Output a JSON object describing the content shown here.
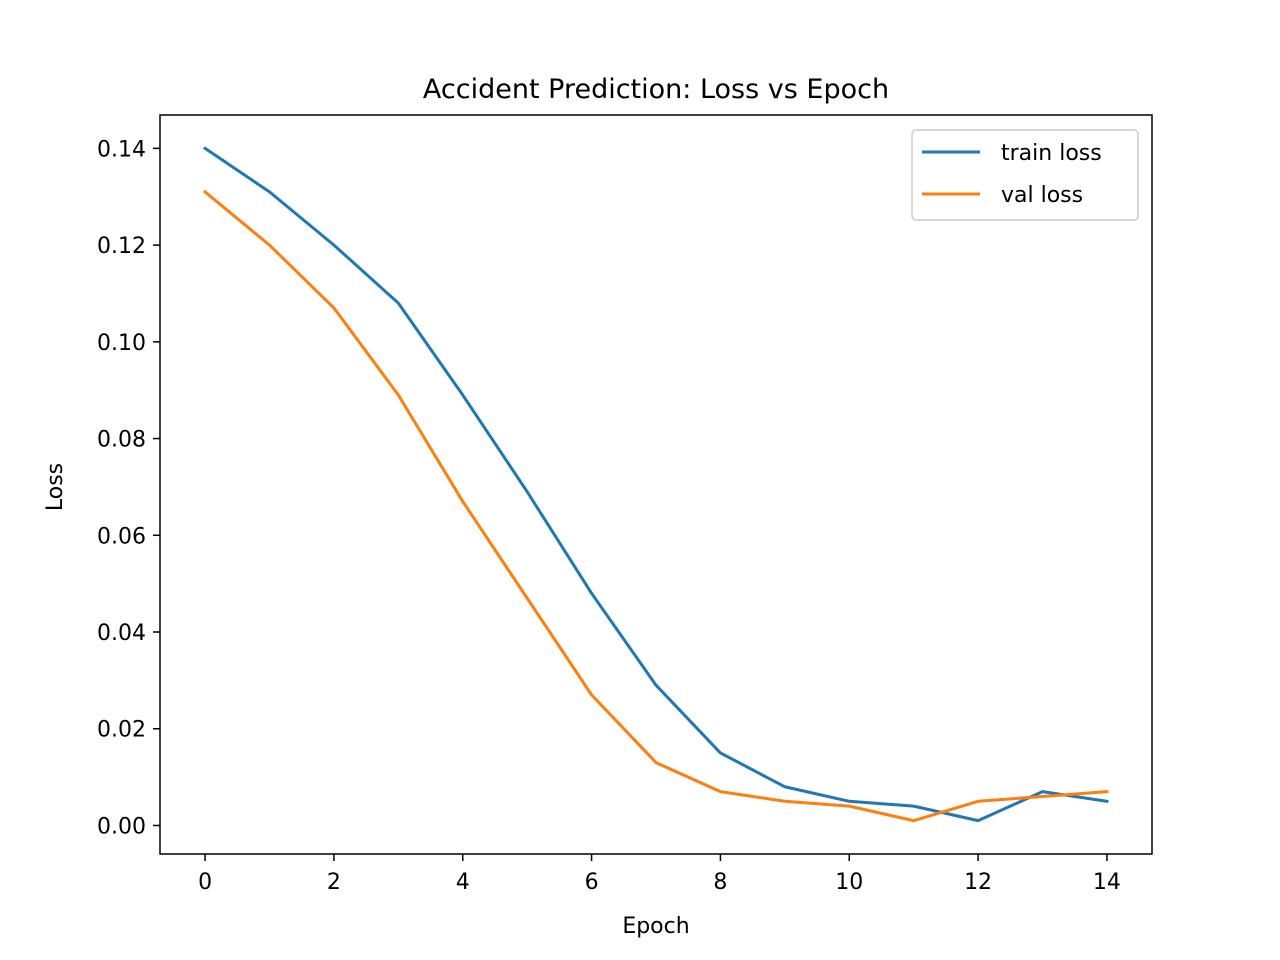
{
  "chart_data": {
    "type": "line",
    "title": "Accident Prediction: Loss vs Epoch",
    "xlabel": "Epoch",
    "ylabel": "Loss",
    "x": [
      0,
      1,
      2,
      3,
      4,
      5,
      6,
      7,
      8,
      9,
      10,
      11,
      12,
      13,
      14
    ],
    "series": [
      {
        "name": "train loss",
        "color": "#1f77b4",
        "values": [
          0.14,
          0.131,
          0.12,
          0.108,
          0.089,
          0.069,
          0.048,
          0.029,
          0.015,
          0.008,
          0.005,
          0.004,
          0.001,
          0.007,
          0.005
        ]
      },
      {
        "name": "val loss",
        "color": "#ff7f0e",
        "values": [
          0.131,
          0.12,
          0.107,
          0.089,
          0.067,
          0.047,
          0.027,
          0.013,
          0.007,
          0.005,
          0.004,
          0.001,
          0.005,
          0.006,
          0.007
        ]
      }
    ],
    "xlim": [
      -0.7,
      14.7
    ],
    "ylim": [
      -0.0059,
      0.1469
    ],
    "xticks": [
      0,
      2,
      4,
      6,
      8,
      10,
      12,
      14
    ],
    "xtick_labels": [
      "0",
      "2",
      "4",
      "6",
      "8",
      "10",
      "12",
      "14"
    ],
    "yticks": [
      0.0,
      0.02,
      0.04,
      0.06,
      0.08,
      0.1,
      0.12,
      0.14
    ],
    "ytick_labels": [
      "0.00",
      "0.02",
      "0.04",
      "0.06",
      "0.08",
      "0.10",
      "0.12",
      "0.14"
    ],
    "grid": false,
    "legend_position": "top-right"
  }
}
